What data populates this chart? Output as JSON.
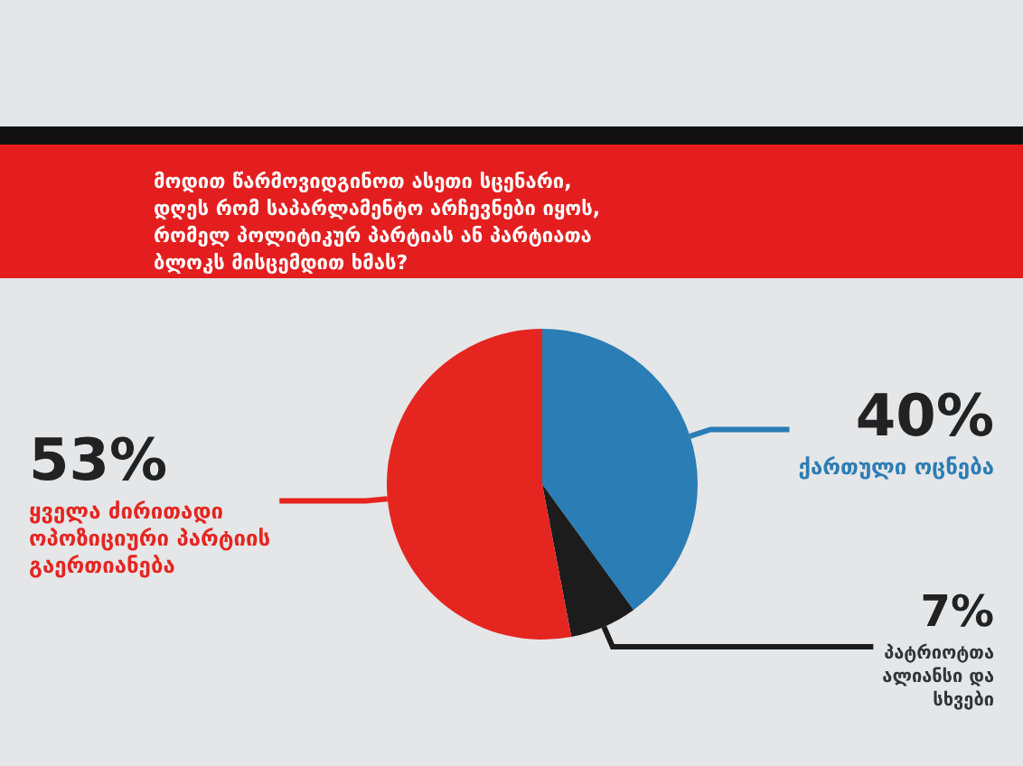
{
  "chart_data": {
    "type": "pie",
    "title": "მოდით წარმოვიდგინოთ ასეთი სცენარი, დღეს რომ საპარლამენტო არჩევნები იყოს, რომელ პოლიტიკურ პარტიას ან პარტიათა ბლოკს მისცემდით ხმას?",
    "categories": [
      "ქართული ოცნება",
      "პატრიოტთა ალიანსი და სხვები",
      "ყველა ძირითადი ოპოზიციური პარტიის გაერთიანება"
    ],
    "values": [
      40,
      7,
      53
    ],
    "value_labels": [
      "40%",
      "7%",
      "53%"
    ],
    "colors": [
      "#2b7db5",
      "#1c1c1c",
      "#e5251f"
    ],
    "legend": false
  }
}
